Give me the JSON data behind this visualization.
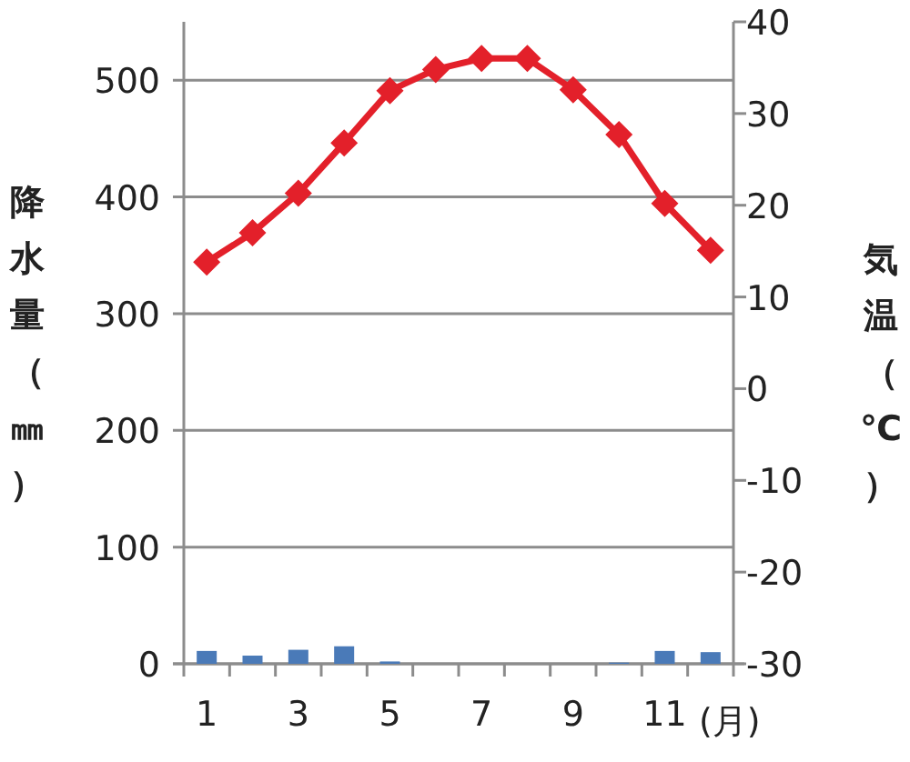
{
  "chart_data": {
    "type": "bar",
    "categories": [
      "1",
      null,
      "3",
      null,
      "5",
      null,
      "7",
      null,
      "9",
      null,
      "11",
      null
    ],
    "series": [
      {
        "color": "#4a7ab8",
        "values": [
          11,
          7,
          12,
          15,
          2,
          0,
          0,
          0,
          0,
          1,
          11,
          10
        ]
      },
      {
        "type": "line",
        "axis": "y2",
        "color": "#e3202a",
        "values": [
          13.8,
          17.0,
          21.3,
          26.8,
          32.5,
          34.8,
          36.0,
          36.0,
          32.6,
          27.7,
          20.2,
          15.1
        ]
      }
    ],
    "xlabel": "(月)",
    "ylabel": "降水量（㎜）",
    "y2label": "気温（℃）",
    "ylim": [
      0,
      550
    ],
    "yticks": [
      0,
      100,
      200,
      300,
      400,
      500
    ],
    "y2lim": [
      -30,
      40
    ],
    "y2ticks": [
      -30,
      -20,
      -10,
      0,
      10,
      20,
      30,
      40
    ],
    "grid": "y",
    "marker": "diamond",
    "line_style": "solid"
  }
}
